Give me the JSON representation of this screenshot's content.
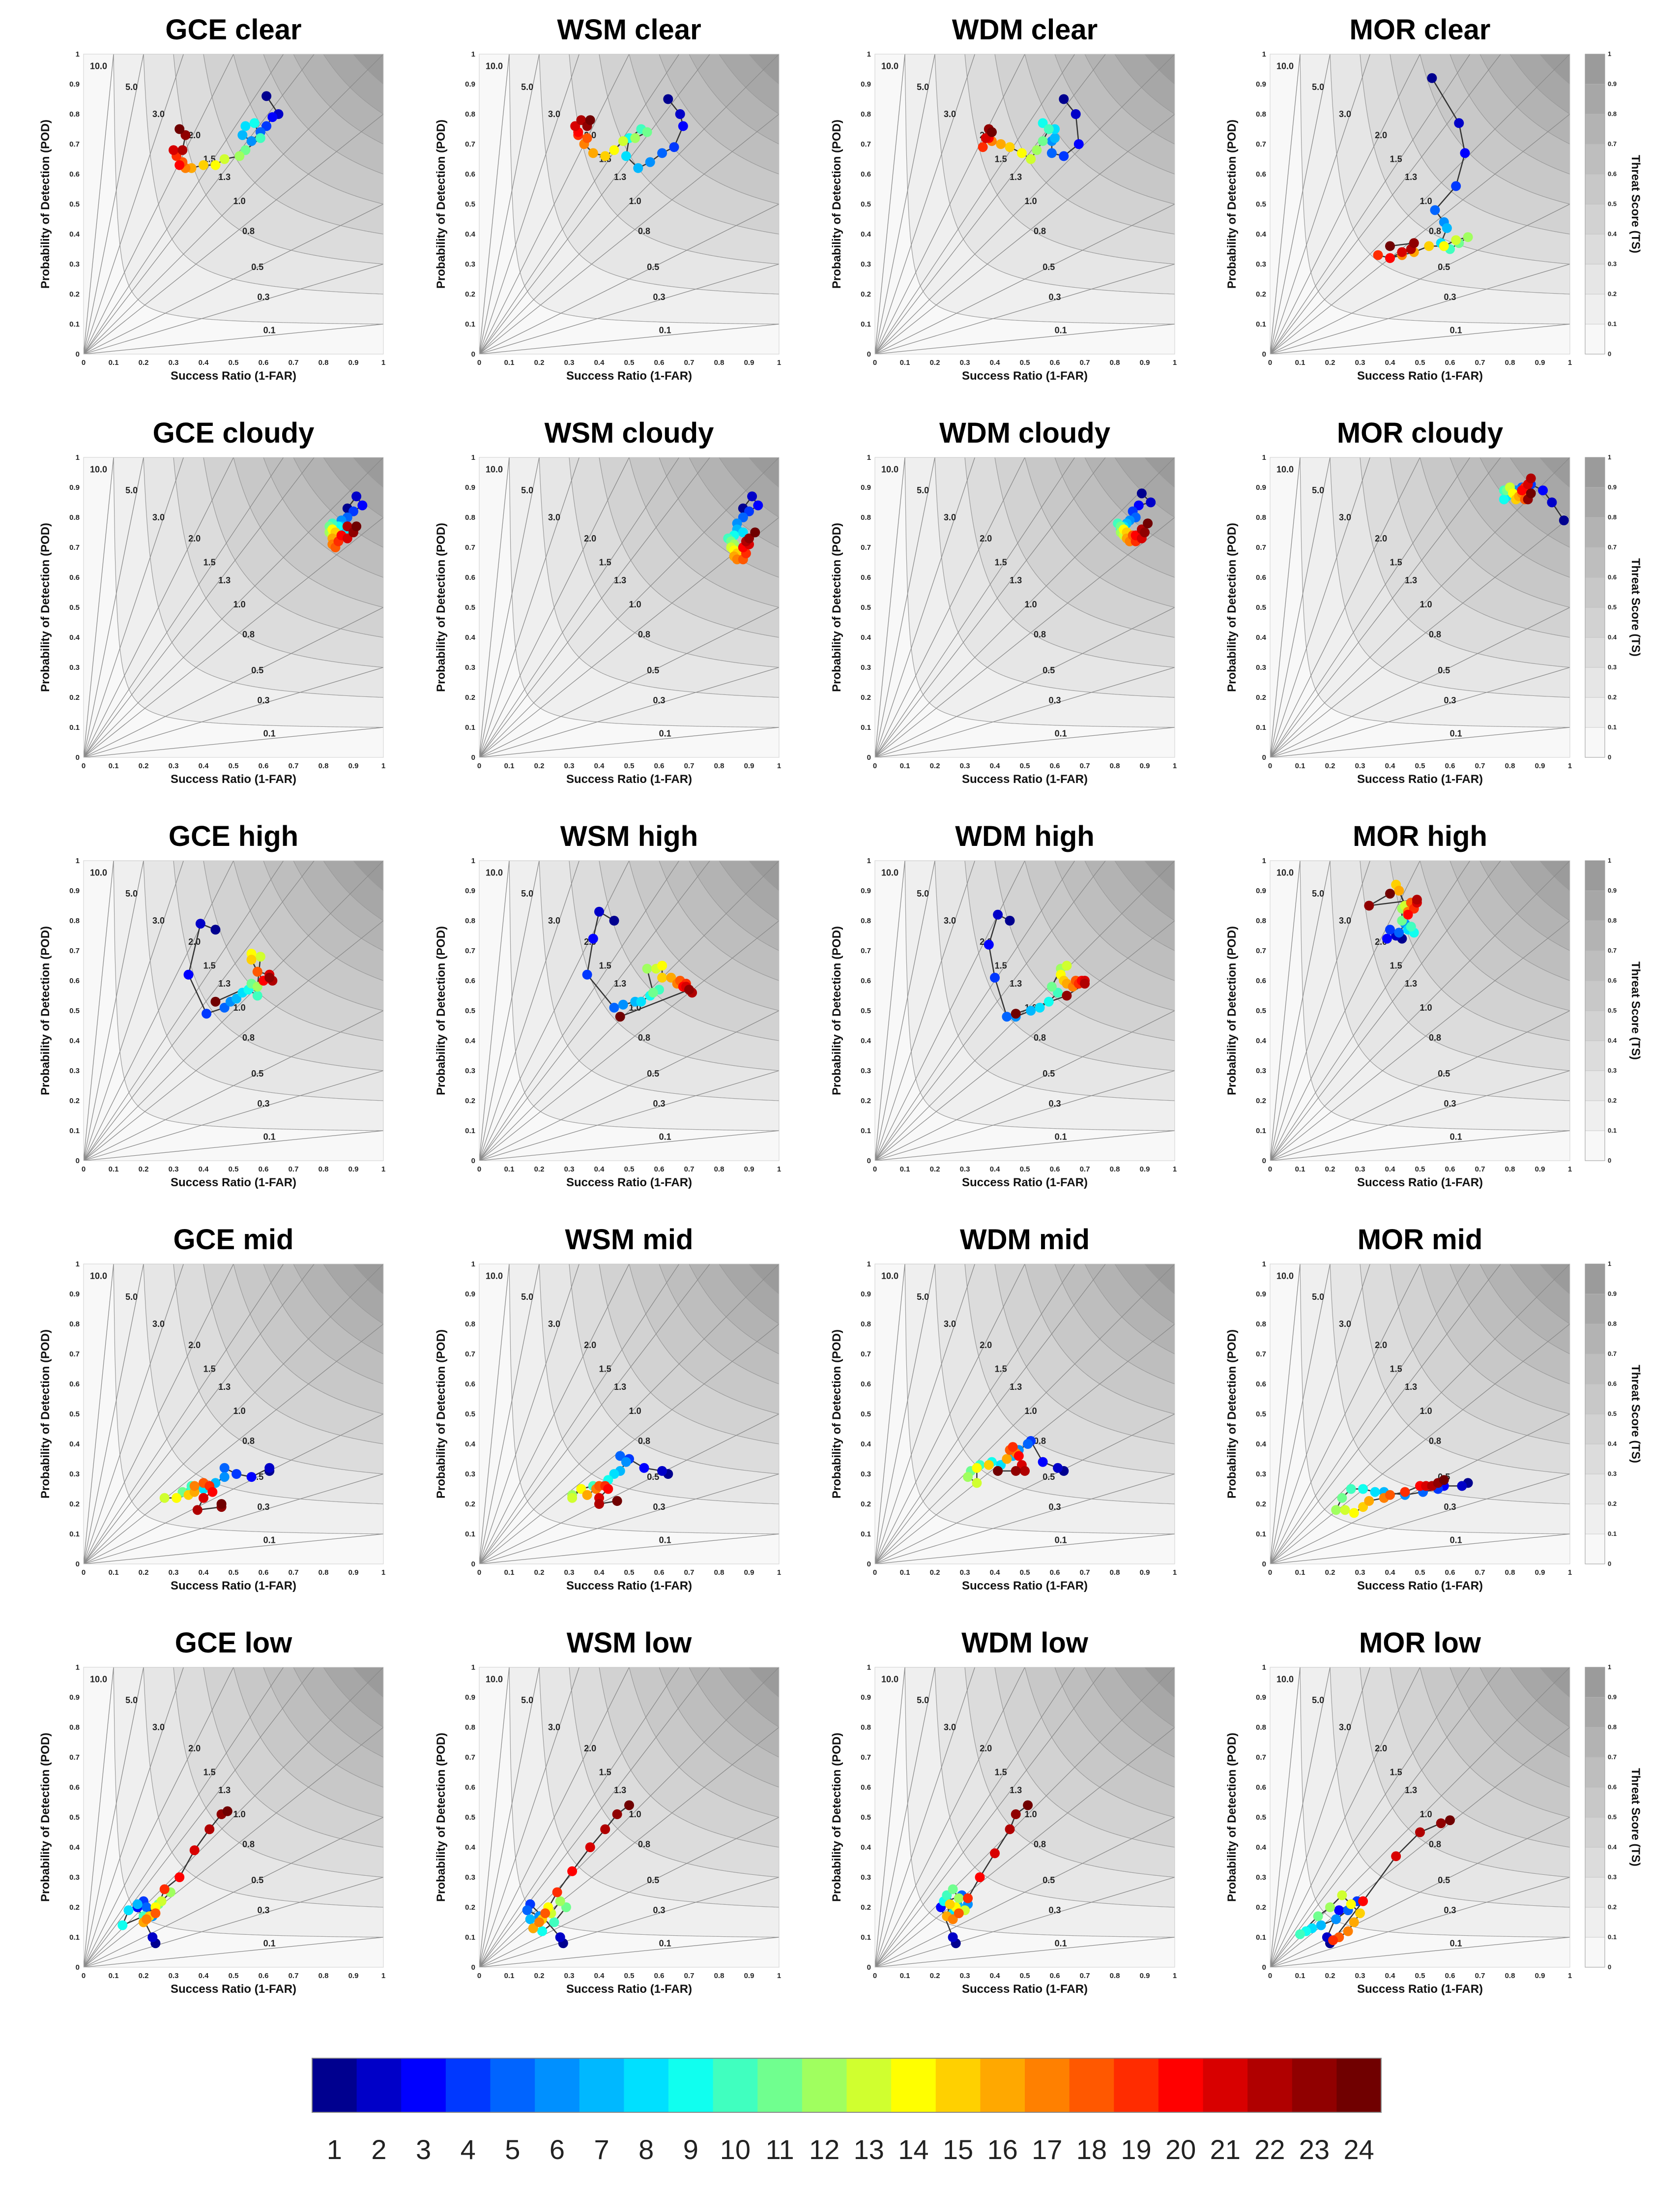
{
  "chart_data": {
    "type": "scatter",
    "description_axes": {
      "xlabel": "Success Ratio (1-FAR)",
      "ylabel": "Probability of Detection (POD)",
      "xlim": [
        0,
        1
      ],
      "ylim": [
        0,
        1
      ],
      "ticks": [
        "0",
        "0.1",
        "0.2",
        "0.3",
        "0.4",
        "0.5",
        "0.6",
        "0.7",
        "0.8",
        "0.9",
        "1"
      ],
      "bias_lines": [
        {
          "value": 10.0,
          "label": "10.0"
        },
        {
          "value": 5.0,
          "label": "5.0"
        },
        {
          "value": 3.0,
          "label": "3.0"
        },
        {
          "value": 2.0,
          "label": "2.0"
        },
        {
          "value": 1.5,
          "label": "1.5"
        },
        {
          "value": 1.3,
          "label": "1.3"
        },
        {
          "value": 1.0,
          "label": "1.0"
        },
        {
          "value": 0.8,
          "label": "0.8"
        },
        {
          "value": 0.5,
          "label": "0.5"
        },
        {
          "value": 0.3,
          "label": "0.3"
        },
        {
          "value": 0.1,
          "label": "0.1"
        }
      ],
      "ts_contours": [
        0.1,
        0.2,
        0.3,
        0.4,
        0.5,
        0.6,
        0.7,
        0.8,
        0.9
      ]
    },
    "ts_colorbar": {
      "title": "Threat Score (TS)",
      "ticks": [
        "0",
        "0.1",
        "0.2",
        "0.3",
        "0.4",
        "0.5",
        "0.6",
        "0.7",
        "0.8",
        "0.9",
        "1"
      ]
    },
    "hour_colorbar": {
      "labels": [
        "1",
        "2",
        "3",
        "4",
        "5",
        "6",
        "7",
        "8",
        "9",
        "10",
        "11",
        "12",
        "13",
        "14",
        "15",
        "16",
        "17",
        "18",
        "19",
        "20",
        "21",
        "22",
        "23",
        "24"
      ],
      "colors": [
        "#00008f",
        "#0000c8",
        "#0000ff",
        "#0038ff",
        "#0064ff",
        "#0090ff",
        "#00b8ff",
        "#00e0ff",
        "#10ffef",
        "#40ffbf",
        "#70ff8f",
        "#a0ff5f",
        "#d0ff2f",
        "#ffff00",
        "#ffd000",
        "#ffa800",
        "#ff8000",
        "#ff5800",
        "#ff2c00",
        "#ff0000",
        "#d80000",
        "#b00000",
        "#900000",
        "#700000"
      ]
    },
    "panels": [
      {
        "title": "GCE clear",
        "x": [
          0.61,
          0.65,
          0.63,
          0.61,
          0.59,
          0.56,
          0.53,
          0.54,
          0.57,
          0.59,
          0.54,
          0.52,
          0.47,
          0.44,
          0.4,
          0.36,
          0.34,
          0.33,
          0.31,
          0.32,
          0.3,
          0.33,
          0.34,
          0.32
        ],
        "y": [
          0.86,
          0.8,
          0.79,
          0.76,
          0.74,
          0.71,
          0.73,
          0.76,
          0.77,
          0.72,
          0.68,
          0.66,
          0.65,
          0.63,
          0.63,
          0.62,
          0.62,
          0.64,
          0.66,
          0.63,
          0.68,
          0.68,
          0.73,
          0.75
        ]
      },
      {
        "title": "WSM clear",
        "x": [
          0.63,
          0.67,
          0.68,
          0.65,
          0.61,
          0.57,
          0.53,
          0.49,
          0.5,
          0.54,
          0.56,
          0.52,
          0.48,
          0.45,
          0.42,
          0.38,
          0.35,
          0.36,
          0.33,
          0.33,
          0.32,
          0.34,
          0.36,
          0.37
        ],
        "y": [
          0.85,
          0.8,
          0.76,
          0.69,
          0.67,
          0.64,
          0.62,
          0.66,
          0.72,
          0.75,
          0.74,
          0.72,
          0.71,
          0.68,
          0.66,
          0.67,
          0.7,
          0.72,
          0.73,
          0.74,
          0.76,
          0.78,
          0.76,
          0.78
        ]
      },
      {
        "title": "WDM clear",
        "x": [
          0.63,
          0.67,
          0.68,
          0.63,
          0.59,
          0.59,
          0.6,
          0.6,
          0.56,
          0.58,
          0.56,
          0.54,
          0.52,
          0.49,
          0.45,
          0.42,
          0.39,
          0.37,
          0.36,
          0.38,
          0.37,
          0.39,
          0.38,
          0.39
        ],
        "y": [
          0.85,
          0.8,
          0.7,
          0.66,
          0.67,
          0.71,
          0.72,
          0.75,
          0.77,
          0.75,
          0.71,
          0.68,
          0.65,
          0.67,
          0.69,
          0.7,
          0.71,
          0.72,
          0.69,
          0.72,
          0.72,
          0.74,
          0.75,
          0.74
        ]
      },
      {
        "title": "MOR clear",
        "x": [
          0.54,
          0.63,
          0.65,
          0.62,
          0.55,
          0.58,
          0.59,
          0.57,
          0.58,
          0.6,
          0.63,
          0.66,
          0.62,
          0.58,
          0.53,
          0.48,
          0.44,
          0.4,
          0.36,
          0.4,
          0.44,
          0.47,
          0.48,
          0.4
        ],
        "y": [
          0.92,
          0.77,
          0.67,
          0.56,
          0.48,
          0.44,
          0.42,
          0.37,
          0.36,
          0.35,
          0.37,
          0.39,
          0.38,
          0.36,
          0.36,
          0.34,
          0.33,
          0.32,
          0.33,
          0.32,
          0.34,
          0.35,
          0.37,
          0.36
        ]
      },
      {
        "title": "GCE cloudy",
        "x": [
          0.88,
          0.91,
          0.93,
          0.9,
          0.88,
          0.86,
          0.86,
          0.88,
          0.85,
          0.83,
          0.82,
          0.82,
          0.83,
          0.83,
          0.84,
          0.83,
          0.83,
          0.84,
          0.85,
          0.86,
          0.88,
          0.88,
          0.9,
          0.91
        ],
        "y": [
          0.83,
          0.87,
          0.84,
          0.82,
          0.8,
          0.79,
          0.77,
          0.75,
          0.77,
          0.78,
          0.77,
          0.75,
          0.74,
          0.76,
          0.75,
          0.73,
          0.71,
          0.7,
          0.72,
          0.74,
          0.73,
          0.77,
          0.75,
          0.77
        ]
      },
      {
        "title": "WSM cloudy",
        "x": [
          0.88,
          0.91,
          0.93,
          0.9,
          0.88,
          0.86,
          0.86,
          0.88,
          0.85,
          0.83,
          0.84,
          0.85,
          0.84,
          0.85,
          0.86,
          0.85,
          0.86,
          0.88,
          0.89,
          0.88,
          0.9,
          0.89,
          0.9,
          0.92
        ],
        "y": [
          0.83,
          0.87,
          0.84,
          0.82,
          0.8,
          0.78,
          0.76,
          0.75,
          0.74,
          0.73,
          0.72,
          0.71,
          0.7,
          0.69,
          0.68,
          0.67,
          0.66,
          0.66,
          0.68,
          0.7,
          0.71,
          0.72,
          0.73,
          0.75
        ]
      },
      {
        "title": "WDM cloudy",
        "x": [
          0.89,
          0.92,
          0.88,
          0.86,
          0.87,
          0.85,
          0.84,
          0.83,
          0.82,
          0.81,
          0.82,
          0.82,
          0.83,
          0.83,
          0.84,
          0.84,
          0.85,
          0.86,
          0.87,
          0.87,
          0.89,
          0.89,
          0.9,
          0.91
        ],
        "y": [
          0.88,
          0.85,
          0.84,
          0.82,
          0.8,
          0.79,
          0.78,
          0.77,
          0.76,
          0.78,
          0.77,
          0.75,
          0.74,
          0.76,
          0.75,
          0.73,
          0.72,
          0.74,
          0.72,
          0.74,
          0.73,
          0.76,
          0.75,
          0.78
        ]
      },
      {
        "title": "MOR cloudy",
        "x": [
          0.98,
          0.94,
          0.91,
          0.87,
          0.84,
          0.82,
          0.8,
          0.79,
          0.78,
          0.78,
          0.79,
          0.8,
          0.8,
          0.81,
          0.82,
          0.83,
          0.84,
          0.85,
          0.85,
          0.84,
          0.86,
          0.87,
          0.86,
          0.87
        ],
        "y": [
          0.79,
          0.85,
          0.89,
          0.91,
          0.9,
          0.89,
          0.88,
          0.87,
          0.86,
          0.89,
          0.89,
          0.9,
          0.9,
          0.88,
          0.86,
          0.87,
          0.88,
          0.86,
          0.9,
          0.89,
          0.91,
          0.93,
          0.86,
          0.88
        ]
      },
      {
        "title": "GCE high",
        "x": [
          0.44,
          0.39,
          0.35,
          0.41,
          0.47,
          0.49,
          0.51,
          0.53,
          0.55,
          0.58,
          0.56,
          0.58,
          0.59,
          0.56,
          0.56,
          0.58,
          0.6,
          0.58,
          0.62,
          0.6,
          0.62,
          0.63,
          0.62,
          0.44
        ],
        "y": [
          0.77,
          0.79,
          0.62,
          0.49,
          0.51,
          0.53,
          0.54,
          0.56,
          0.57,
          0.55,
          0.59,
          0.58,
          0.68,
          0.69,
          0.67,
          0.63,
          0.6,
          0.63,
          0.62,
          0.6,
          0.62,
          0.6,
          0.61,
          0.53
        ]
      },
      {
        "title": "WSM high",
        "x": [
          0.45,
          0.4,
          0.38,
          0.36,
          0.45,
          0.48,
          0.52,
          0.54,
          0.57,
          0.6,
          0.58,
          0.56,
          0.59,
          0.61,
          0.61,
          0.64,
          0.66,
          0.67,
          0.69,
          0.68,
          0.69,
          0.71,
          0.7,
          0.47
        ],
        "y": [
          0.8,
          0.83,
          0.74,
          0.62,
          0.51,
          0.52,
          0.53,
          0.53,
          0.55,
          0.57,
          0.56,
          0.64,
          0.64,
          0.65,
          0.61,
          0.61,
          0.59,
          0.6,
          0.59,
          0.58,
          0.58,
          0.56,
          0.57,
          0.48
        ]
      },
      {
        "title": "WDM high",
        "x": [
          0.45,
          0.41,
          0.38,
          0.4,
          0.44,
          0.47,
          0.52,
          0.55,
          0.58,
          0.61,
          0.59,
          0.62,
          0.64,
          0.62,
          0.63,
          0.64,
          0.66,
          0.67,
          0.68,
          0.69,
          0.7,
          0.7,
          0.64,
          0.47
        ],
        "y": [
          0.8,
          0.82,
          0.72,
          0.61,
          0.48,
          0.48,
          0.5,
          0.51,
          0.53,
          0.56,
          0.58,
          0.64,
          0.65,
          0.62,
          0.6,
          0.59,
          0.58,
          0.6,
          0.59,
          0.6,
          0.6,
          0.59,
          0.55,
          0.49
        ]
      },
      {
        "title": "MOR high",
        "x": [
          0.44,
          0.42,
          0.39,
          0.4,
          0.43,
          0.45,
          0.47,
          0.46,
          0.48,
          0.47,
          0.44,
          0.44,
          0.45,
          0.43,
          0.42,
          0.43,
          0.46,
          0.47,
          0.48,
          0.46,
          0.49,
          0.49,
          0.33,
          0.4
        ],
        "y": [
          0.74,
          0.75,
          0.74,
          0.77,
          0.76,
          0.79,
          0.78,
          0.77,
          0.76,
          0.78,
          0.8,
          0.84,
          0.85,
          0.9,
          0.92,
          0.9,
          0.83,
          0.86,
          0.84,
          0.82,
          0.86,
          0.87,
          0.85,
          0.89
        ]
      },
      {
        "title": "GCE mid",
        "x": [
          0.62,
          0.62,
          0.56,
          0.51,
          0.47,
          0.47,
          0.44,
          0.4,
          0.36,
          0.36,
          0.33,
          0.31,
          0.27,
          0.31,
          0.35,
          0.37,
          0.37,
          0.4,
          0.42,
          0.43,
          0.4,
          0.38,
          0.46,
          0.46
        ],
        "y": [
          0.31,
          0.32,
          0.29,
          0.3,
          0.32,
          0.29,
          0.27,
          0.25,
          0.25,
          0.26,
          0.24,
          0.22,
          0.22,
          0.22,
          0.23,
          0.24,
          0.26,
          0.27,
          0.26,
          0.24,
          0.22,
          0.18,
          0.19,
          0.2
        ]
      },
      {
        "title": "WSM mid",
        "x": [
          0.63,
          0.61,
          0.55,
          0.5,
          0.47,
          0.49,
          0.47,
          0.45,
          0.43,
          0.38,
          0.34,
          0.31,
          0.31,
          0.34,
          0.36,
          0.36,
          0.39,
          0.4,
          0.42,
          0.43,
          0.4,
          0.4,
          0.46,
          0.46
        ],
        "y": [
          0.3,
          0.31,
          0.32,
          0.35,
          0.36,
          0.34,
          0.31,
          0.3,
          0.28,
          0.26,
          0.25,
          0.23,
          0.22,
          0.25,
          0.23,
          0.23,
          0.25,
          0.26,
          0.26,
          0.25,
          0.22,
          0.2,
          0.21,
          0.21
        ]
      },
      {
        "title": "WDM mid",
        "x": [
          0.63,
          0.61,
          0.56,
          0.52,
          0.51,
          0.48,
          0.46,
          0.42,
          0.39,
          0.35,
          0.32,
          0.31,
          0.34,
          0.34,
          0.38,
          0.44,
          0.47,
          0.45,
          0.46,
          0.48,
          0.49,
          0.5,
          0.47,
          0.41
        ],
        "y": [
          0.31,
          0.32,
          0.34,
          0.41,
          0.4,
          0.38,
          0.36,
          0.33,
          0.34,
          0.33,
          0.31,
          0.29,
          0.27,
          0.32,
          0.33,
          0.35,
          0.37,
          0.38,
          0.39,
          0.36,
          0.33,
          0.31,
          0.31,
          0.31
        ]
      },
      {
        "title": "MOR mid",
        "x": [
          0.66,
          0.64,
          0.58,
          0.56,
          0.51,
          0.45,
          0.38,
          0.35,
          0.31,
          0.27,
          0.24,
          0.22,
          0.25,
          0.28,
          0.31,
          0.33,
          0.38,
          0.4,
          0.45,
          0.5,
          0.52,
          0.54,
          0.56,
          0.58
        ],
        "y": [
          0.27,
          0.26,
          0.26,
          0.25,
          0.24,
          0.23,
          0.24,
          0.24,
          0.25,
          0.25,
          0.22,
          0.18,
          0.18,
          0.17,
          0.19,
          0.21,
          0.22,
          0.23,
          0.24,
          0.26,
          0.26,
          0.26,
          0.27,
          0.28
        ]
      },
      {
        "title": "GCE low",
        "x": [
          0.24,
          0.23,
          0.18,
          0.2,
          0.21,
          0.23,
          0.18,
          0.15,
          0.13,
          0.2,
          0.25,
          0.29,
          0.26,
          0.24,
          0.22,
          0.2,
          0.21,
          0.24,
          0.27,
          0.32,
          0.37,
          0.42,
          0.46,
          0.48
        ],
        "y": [
          0.08,
          0.1,
          0.2,
          0.22,
          0.2,
          0.17,
          0.21,
          0.19,
          0.14,
          0.17,
          0.21,
          0.25,
          0.22,
          0.2,
          0.17,
          0.15,
          0.16,
          0.18,
          0.26,
          0.3,
          0.39,
          0.46,
          0.51,
          0.52
        ]
      },
      {
        "title": "WSM low",
        "x": [
          0.28,
          0.27,
          0.21,
          0.17,
          0.16,
          0.2,
          0.17,
          0.18,
          0.21,
          0.25,
          0.29,
          0.27,
          0.24,
          0.23,
          0.21,
          0.18,
          0.2,
          0.22,
          0.26,
          0.31,
          0.37,
          0.42,
          0.46,
          0.5
        ],
        "y": [
          0.08,
          0.1,
          0.17,
          0.21,
          0.19,
          0.17,
          0.16,
          0.13,
          0.12,
          0.15,
          0.2,
          0.22,
          0.18,
          0.2,
          0.16,
          0.13,
          0.15,
          0.18,
          0.25,
          0.32,
          0.4,
          0.46,
          0.51,
          0.54
        ]
      },
      {
        "title": "WDM low",
        "x": [
          0.27,
          0.26,
          0.22,
          0.24,
          0.29,
          0.31,
          0.28,
          0.26,
          0.23,
          0.24,
          0.26,
          0.28,
          0.3,
          0.27,
          0.25,
          0.24,
          0.26,
          0.28,
          0.31,
          0.35,
          0.4,
          0.45,
          0.47,
          0.51
        ],
        "y": [
          0.08,
          0.1,
          0.2,
          0.22,
          0.24,
          0.21,
          0.2,
          0.18,
          0.22,
          0.24,
          0.26,
          0.23,
          0.19,
          0.2,
          0.21,
          0.17,
          0.16,
          0.18,
          0.23,
          0.3,
          0.38,
          0.46,
          0.51,
          0.54
        ]
      },
      {
        "title": "MOR low",
        "x": [
          0.2,
          0.19,
          0.23,
          0.29,
          0.26,
          0.22,
          0.17,
          0.14,
          0.12,
          0.1,
          0.16,
          0.2,
          0.24,
          0.27,
          0.3,
          0.28,
          0.26,
          0.23,
          0.21,
          0.31,
          0.42,
          0.5,
          0.57,
          0.6
        ],
        "y": [
          0.08,
          0.1,
          0.19,
          0.22,
          0.19,
          0.16,
          0.14,
          0.13,
          0.12,
          0.11,
          0.17,
          0.2,
          0.24,
          0.21,
          0.18,
          0.15,
          0.12,
          0.1,
          0.09,
          0.22,
          0.37,
          0.45,
          0.48,
          0.49
        ]
      }
    ]
  }
}
